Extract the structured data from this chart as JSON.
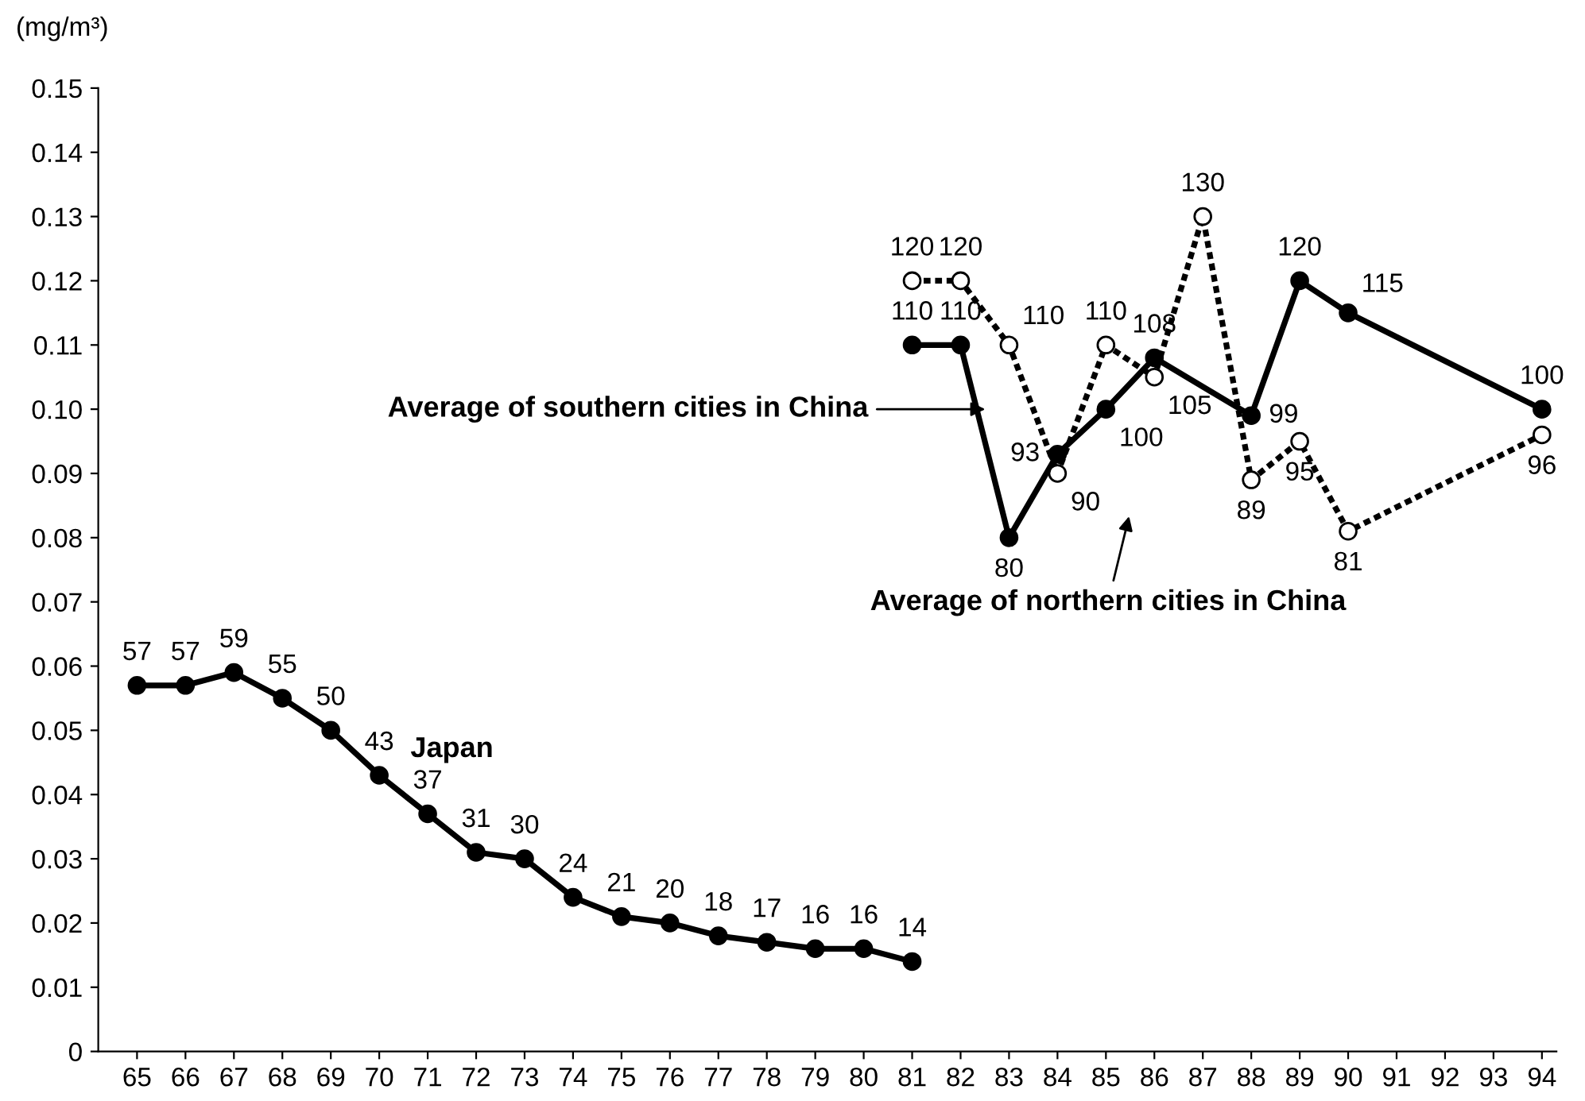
{
  "chart_data": {
    "type": "line",
    "ylabel": "(mg/m³)",
    "xlim": [
      64.2,
      94.3
    ],
    "xticks": [
      65,
      66,
      67,
      68,
      69,
      70,
      71,
      72,
      73,
      74,
      75,
      76,
      77,
      78,
      79,
      80,
      81,
      82,
      83,
      84,
      85,
      86,
      87,
      88,
      89,
      90,
      91,
      92,
      93,
      94
    ],
    "ylim": [
      0,
      0.15
    ],
    "yticks": [
      0,
      0.01,
      0.02,
      0.03,
      0.04,
      0.05,
      0.06,
      0.07,
      0.08,
      0.09,
      {
        "value": 0.1,
        "label": "0.10"
      },
      0.11,
      0.12,
      0.13,
      0.14,
      0.15
    ],
    "grid": false,
    "legend": false,
    "series": [
      {
        "color": "#000000",
        "line_style": "solid",
        "marker": "circle",
        "x": [
          65,
          66,
          67,
          68,
          69,
          70,
          71,
          72,
          73,
          74,
          75,
          76,
          77,
          78,
          79,
          80,
          81
        ],
        "values": [
          0.057,
          0.057,
          0.059,
          0.055,
          0.05,
          0.043,
          0.037,
          0.031,
          0.03,
          0.024,
          0.021,
          0.02,
          0.018,
          0.017,
          0.016,
          0.016,
          0.014
        ]
      },
      {
        "color": "#000000",
        "line_style": "solid",
        "marker": "circle",
        "x": [
          81,
          82,
          83,
          84,
          85,
          86,
          88,
          89,
          90,
          94
        ],
        "values": [
          0.11,
          0.11,
          0.08,
          0.093,
          0.1,
          0.108,
          0.099,
          0.12,
          0.115,
          0.1
        ]
      },
      {
        "color": "#000000",
        "line_style": "dotted",
        "marker": "open circle",
        "x": [
          81,
          82,
          83,
          84,
          85,
          86,
          87,
          88,
          89,
          90,
          94
        ],
        "values": [
          0.12,
          0.12,
          0.11,
          0.09,
          0.11,
          0.105,
          0.13,
          0.089,
          0.095,
          0.081,
          0.096
        ]
      }
    ],
    "annotations": [
      "Japan",
      "Average of southern cities in China",
      "Average of northern cities in China",
      {
        "text": "57",
        "x": 65,
        "y": 0.057
      },
      {
        "text": "57",
        "x": 66,
        "y": 0.057
      },
      {
        "text": "59",
        "x": 67,
        "y": 0.059
      },
      {
        "text": "55",
        "x": 68,
        "y": 0.055
      },
      {
        "text": "50",
        "x": 69,
        "y": 0.05
      },
      {
        "text": "43",
        "x": 70,
        "y": 0.043
      },
      {
        "text": "37",
        "x": 71,
        "y": 0.037
      },
      {
        "text": "31",
        "x": 72,
        "y": 0.031
      },
      {
        "text": "30",
        "x": 73,
        "y": 0.03
      },
      {
        "text": "24",
        "x": 74,
        "y": 0.024
      },
      {
        "text": "21",
        "x": 75,
        "y": 0.021
      },
      {
        "text": "20",
        "x": 76,
        "y": 0.02
      },
      {
        "text": "18",
        "x": 77,
        "y": 0.018
      },
      {
        "text": "17",
        "x": 78,
        "y": 0.017
      },
      {
        "text": "16",
        "x": 79,
        "y": 0.016
      },
      {
        "text": "16",
        "x": 80,
        "y": 0.016
      },
      {
        "text": "14",
        "x": 81,
        "y": 0.014
      },
      {
        "text": "110",
        "x": 81,
        "y": 0.11
      },
      {
        "text": "110",
        "x": 82,
        "y": 0.11
      },
      {
        "text": "80",
        "x": 83,
        "y": 0.08
      },
      {
        "text": "93",
        "x": 84,
        "y": 0.093
      },
      {
        "text": "100",
        "x": 85,
        "y": 0.1
      },
      {
        "text": "108",
        "x": 86,
        "y": 0.108
      },
      {
        "text": "99",
        "x": 88,
        "y": 0.099
      },
      {
        "text": "120",
        "x": 89,
        "y": 0.12
      },
      {
        "text": "115",
        "x": 90,
        "y": 0.115
      },
      {
        "text": "100",
        "x": 94,
        "y": 0.1
      },
      {
        "text": "120",
        "x": 81,
        "y": 0.12
      },
      {
        "text": "120",
        "x": 82,
        "y": 0.12
      },
      {
        "text": "110",
        "x": 83,
        "y": 0.11
      },
      {
        "text": "90",
        "x": 84,
        "y": 0.09
      },
      {
        "text": "110",
        "x": 85,
        "y": 0.11
      },
      {
        "text": "105",
        "x": 86,
        "y": 0.105
      },
      {
        "text": "130",
        "x": 87,
        "y": 0.13
      },
      {
        "text": "89",
        "x": 88,
        "y": 0.089
      },
      {
        "text": "95",
        "x": 89,
        "y": 0.095
      },
      {
        "text": "81",
        "x": 90,
        "y": 0.081
      },
      {
        "text": "96",
        "x": 94,
        "y": 0.096
      }
    ]
  }
}
